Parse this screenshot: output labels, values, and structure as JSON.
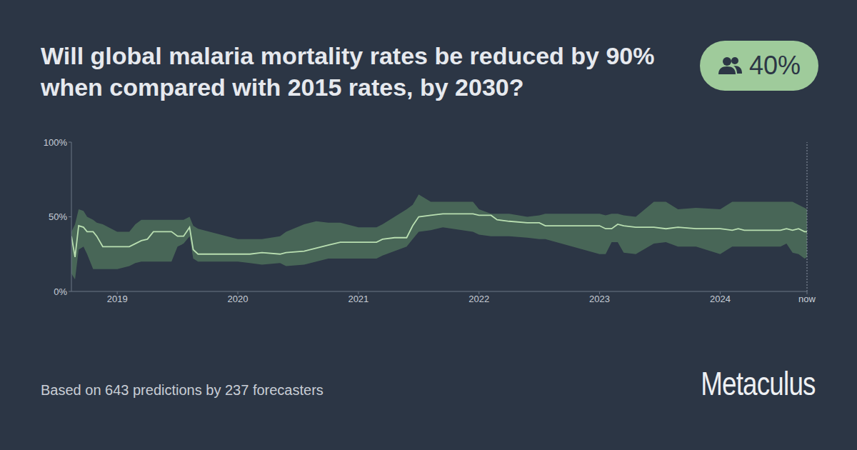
{
  "chart_data": {
    "type": "line",
    "title": "Will global malaria mortality rates be reduced by 90% when compared with 2015 rates, by 2030?",
    "badge": "40%",
    "footer": "Based on 643 predictions by 237 forecasters",
    "brand": "Metaculus",
    "x": [
      2018.62,
      2018.65,
      2018.68,
      2018.72,
      2018.75,
      2018.8,
      2018.83,
      2018.88,
      2019,
      2019.1,
      2019.15,
      2019.2,
      2019.25,
      2019.3,
      2019.45,
      2019.5,
      2019.55,
      2019.6,
      2019.63,
      2019.67,
      2020,
      2020.1,
      2020.2,
      2020.35,
      2020.4,
      2020.55,
      2020.65,
      2020.75,
      2020.85,
      2021,
      2021.15,
      2021.2,
      2021.3,
      2021.4,
      2021.45,
      2021.5,
      2021.6,
      2021.7,
      2021.95,
      2022,
      2022.1,
      2022.15,
      2022.25,
      2022.4,
      2022.5,
      2022.55,
      2023,
      2023.05,
      2023.1,
      2023.15,
      2023.2,
      2023.3,
      2023.45,
      2023.55,
      2023.65,
      2023.8,
      2024,
      2024.1,
      2024.15,
      2024.2,
      2024.5,
      2024.55,
      2024.6,
      2024.65,
      2024.7,
      2024.72
    ],
    "series": [
      {
        "type": "range",
        "color": "#4d6e5a",
        "lower": [
          12,
          8,
          28,
          30,
          25,
          15,
          15,
          15,
          15,
          17,
          19,
          20,
          20,
          20,
          20,
          30,
          32,
          37,
          22,
          20,
          20,
          19,
          18,
          19,
          17,
          18,
          20,
          22,
          22,
          22,
          22,
          24,
          27,
          30,
          35,
          40,
          41,
          43,
          40,
          38,
          37,
          37,
          37,
          36,
          35,
          35,
          25,
          25,
          33,
          33,
          26,
          25,
          32,
          33,
          30,
          30,
          25,
          30,
          30,
          30,
          30,
          32,
          26,
          25,
          22,
          23
        ],
        "upper": [
          40,
          45,
          55,
          54,
          50,
          48,
          46,
          45,
          40,
          40,
          45,
          48,
          48,
          48,
          48,
          48,
          48,
          50,
          44,
          42,
          35,
          35,
          35,
          37,
          40,
          45,
          47,
          46,
          46,
          43,
          43,
          45,
          50,
          55,
          58,
          65,
          60,
          60,
          60,
          55,
          52,
          52,
          52,
          50,
          51,
          52,
          52,
          51,
          52,
          52,
          51,
          50,
          60,
          60,
          55,
          56,
          55,
          60,
          60,
          60,
          60,
          60,
          60,
          58,
          56,
          55
        ]
      },
      {
        "type": "line",
        "color": "#b9dfb1",
        "values": [
          37,
          23,
          44,
          43,
          40,
          40,
          37,
          30,
          30,
          30,
          32,
          34,
          35,
          40,
          40,
          37,
          37,
          43,
          28,
          25,
          25,
          25,
          26,
          25,
          26,
          27,
          29,
          31,
          33,
          33,
          33,
          35,
          36,
          36,
          44,
          50,
          51,
          52,
          52,
          51,
          51,
          48,
          47,
          46,
          46,
          44,
          44,
          42,
          42,
          45,
          44,
          43,
          43,
          42,
          43,
          42,
          42,
          41,
          42,
          41,
          41,
          42,
          41,
          42,
          40,
          40
        ]
      }
    ],
    "xlim": [
      2018.62,
      2024.72
    ],
    "xticks": [
      2019,
      2020,
      2021,
      2022,
      2023,
      2024,
      {
        "value": 2024.72,
        "label": "now"
      }
    ],
    "ylim": [
      0,
      100
    ],
    "yticks": [
      {
        "value": 0,
        "label": "0%"
      },
      {
        "value": 50,
        "label": "50%"
      },
      {
        "value": 100,
        "label": "100%"
      }
    ]
  }
}
